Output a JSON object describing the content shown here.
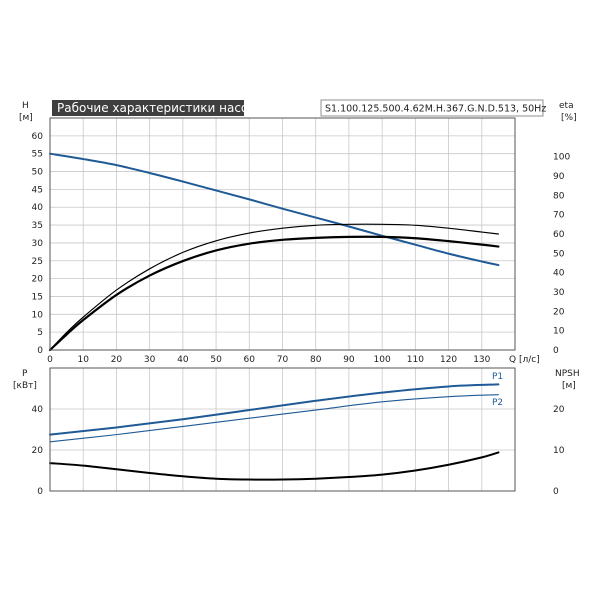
{
  "title": "Рабочие характеристики насоса",
  "model": "S1.100.125.500.4.62M.H.367.G.N.D.513, 50Hz",
  "colors": {
    "blue": "#1f5a96",
    "black": "#000000",
    "title_bg": "#3f3f3f"
  },
  "chart_data": [
    {
      "type": "line",
      "x_axis": {
        "label": "Q",
        "unit": "[л/с]",
        "ticks": [
          0,
          10,
          20,
          30,
          40,
          50,
          60,
          70,
          80,
          90,
          100,
          110,
          120,
          130
        ],
        "range": [
          0,
          140
        ]
      },
      "y_left": {
        "label": "H",
        "unit": "[м]",
        "ticks": [
          0,
          5,
          10,
          15,
          20,
          25,
          30,
          35,
          40,
          45,
          50,
          55,
          60
        ],
        "range": [
          0,
          65
        ]
      },
      "y_right": {
        "label": "eta",
        "unit": "[%]",
        "ticks": [
          0,
          10,
          20,
          30,
          40,
          50,
          60,
          70,
          80,
          90,
          100
        ],
        "range": [
          0,
          120
        ]
      },
      "grid": true,
      "series": [
        {
          "axis": "left",
          "color": "#1f5a96",
          "width": 2,
          "x": [
            0,
            10,
            20,
            30,
            40,
            50,
            60,
            70,
            80,
            90,
            100,
            110,
            120,
            130,
            135
          ],
          "y": [
            55,
            53.5,
            51.8,
            49.6,
            47.2,
            44.7,
            42.2,
            39.6,
            37.1,
            34.6,
            32.0,
            29.5,
            27.0,
            24.8,
            23.8
          ]
        },
        {
          "axis": "right",
          "color": "#000000",
          "width": 1.2,
          "x": [
            0,
            5,
            10,
            20,
            30,
            40,
            50,
            60,
            70,
            80,
            90,
            100,
            110,
            120,
            130,
            135
          ],
          "y": [
            0,
            9,
            17,
            31,
            42,
            50.5,
            56.5,
            60.5,
            63,
            64.5,
            65,
            65,
            64.5,
            63,
            61,
            60
          ]
        },
        {
          "axis": "right",
          "color": "#000000",
          "width": 2.2,
          "x": [
            0,
            5,
            10,
            20,
            30,
            40,
            50,
            60,
            70,
            80,
            90,
            100,
            110,
            120,
            130,
            135
          ],
          "y": [
            0,
            8,
            15.5,
            28.5,
            38.5,
            46,
            51.5,
            55,
            57,
            58,
            58.5,
            58.5,
            57.8,
            56.3,
            54.5,
            53.5
          ]
        }
      ]
    },
    {
      "type": "line",
      "x_axis": {
        "range": [
          0,
          140
        ]
      },
      "y_left": {
        "label": "P",
        "unit": "[кВт]",
        "ticks": [
          0,
          20,
          40
        ],
        "range": [
          0,
          60
        ]
      },
      "y_right": {
        "label": "NPSH",
        "unit": "[м]",
        "ticks": [
          0,
          10,
          20
        ],
        "range": [
          0,
          30
        ]
      },
      "grid": true,
      "series": [
        {
          "name": "P1",
          "axis": "left",
          "color": "#1f5a96",
          "width": 2,
          "x": [
            0,
            20,
            40,
            60,
            80,
            100,
            120,
            135
          ],
          "y": [
            27.5,
            31,
            35,
            39.5,
            44,
            48,
            51,
            52
          ]
        },
        {
          "name": "P2",
          "axis": "left",
          "color": "#1f5a96",
          "width": 1.1,
          "x": [
            0,
            20,
            40,
            60,
            80,
            100,
            120,
            135
          ],
          "y": [
            24,
            27.5,
            31.5,
            35.5,
            39.5,
            43.5,
            46,
            47
          ]
        },
        {
          "axis": "right",
          "color": "#000000",
          "width": 2,
          "x": [
            0,
            10,
            20,
            30,
            40,
            50,
            60,
            70,
            80,
            90,
            100,
            110,
            120,
            130,
            135
          ],
          "y": [
            6.8,
            6.2,
            5.3,
            4.4,
            3.6,
            3.0,
            2.8,
            2.8,
            3.0,
            3.4,
            4.0,
            5.0,
            6.4,
            8.2,
            9.4
          ]
        }
      ]
    }
  ]
}
